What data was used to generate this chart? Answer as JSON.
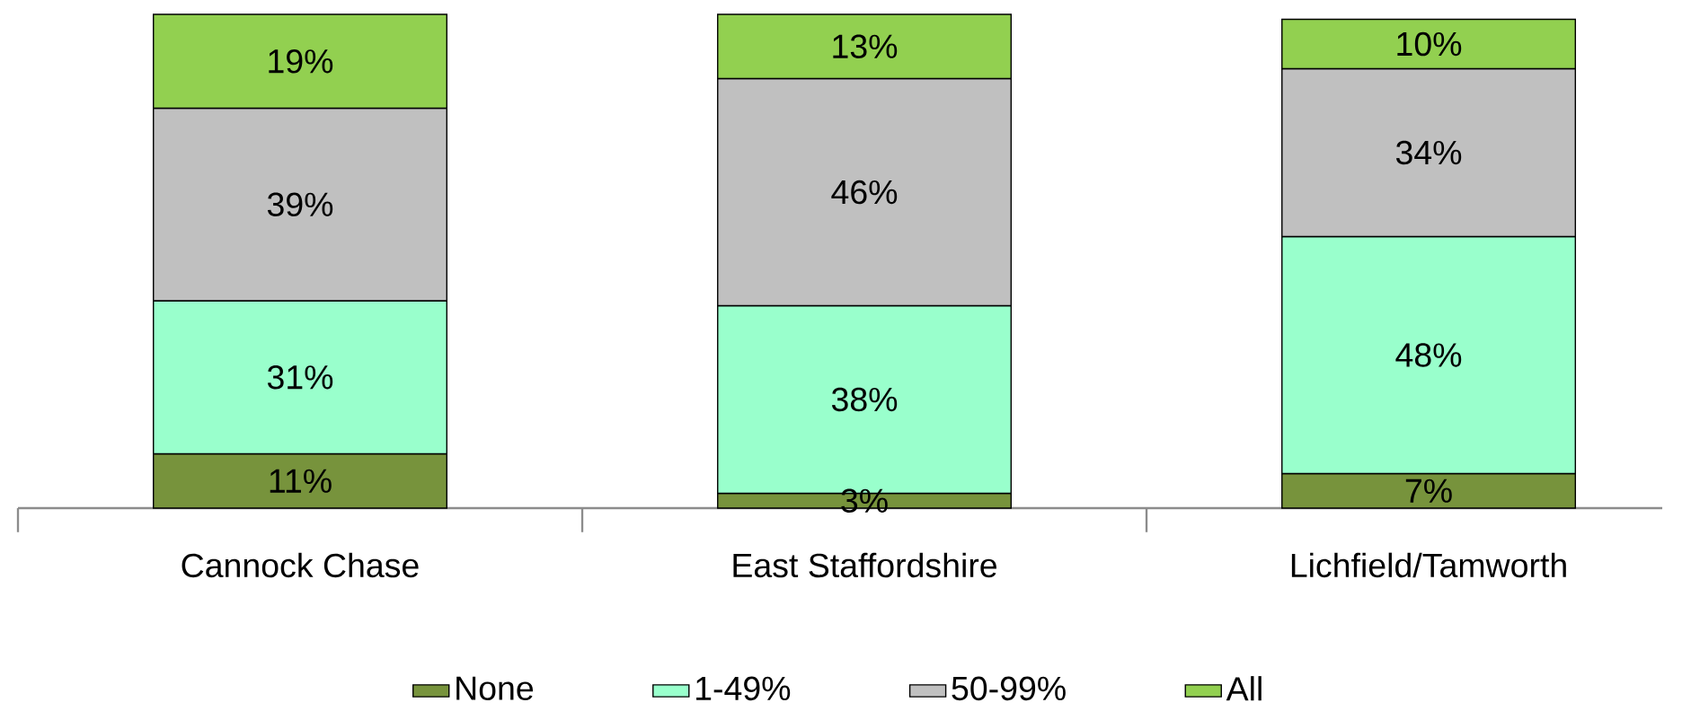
{
  "chart_data": {
    "type": "bar",
    "stacked": true,
    "categories": [
      "Cannock Chase",
      "East Staffordshire",
      "Lichfield/Tamworth"
    ],
    "series": [
      {
        "name": "None",
        "color": "#77933c",
        "values": [
          11,
          3,
          7
        ],
        "value_labels": [
          "11%",
          "3%",
          "7%"
        ]
      },
      {
        "name": "1-49%",
        "color": "#99ffcc",
        "values": [
          31,
          38,
          48
        ],
        "value_labels": [
          "31%",
          "38%",
          "48%"
        ]
      },
      {
        "name": "50-99%",
        "color": "#c0c0c0",
        "values": [
          39,
          46,
          34
        ],
        "value_labels": [
          "39%",
          "46%",
          "34%"
        ]
      },
      {
        "name": "All",
        "color": "#92d050",
        "values": [
          19,
          13,
          10
        ],
        "value_labels": [
          "19%",
          "13%",
          "10%"
        ]
      }
    ],
    "ylim": [
      0,
      100
    ],
    "tick_labels": "x",
    "legend": "bottom",
    "grid": false
  }
}
